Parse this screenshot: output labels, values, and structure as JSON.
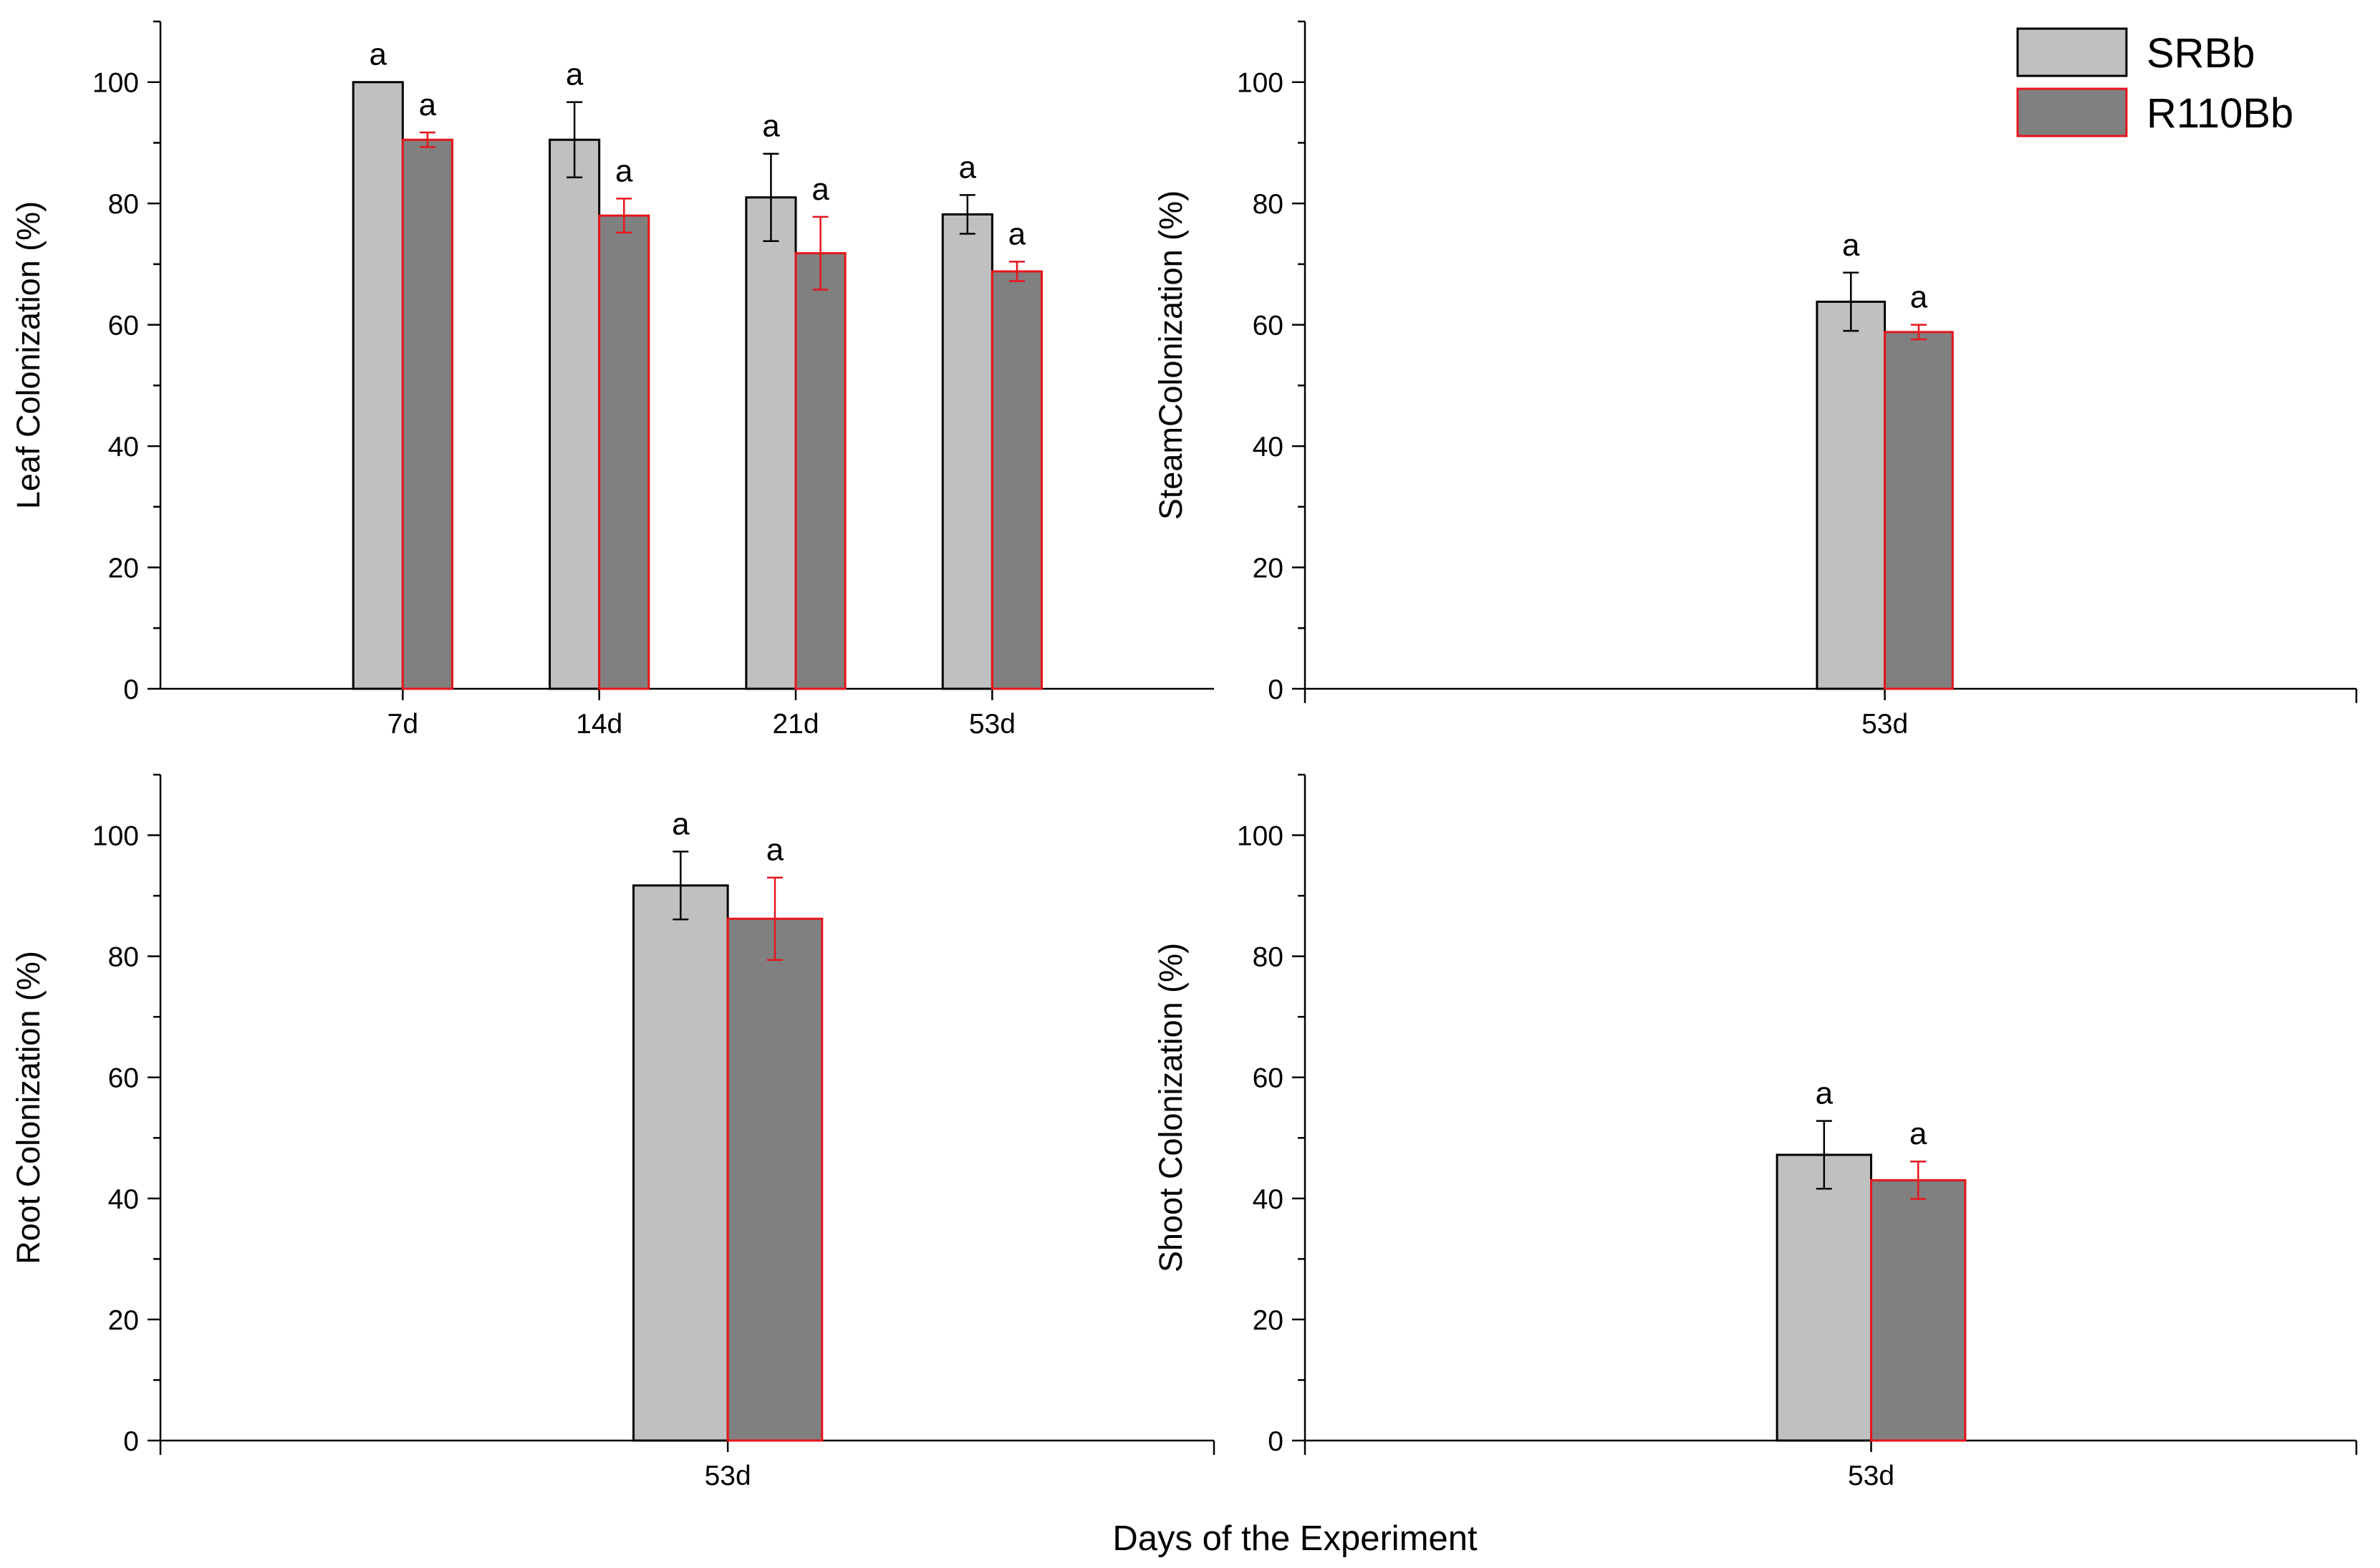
{
  "legend": [
    {
      "name": "SRBb",
      "fill": "#c0c0c0",
      "stroke": "#000000"
    },
    {
      "name": "R110Bb",
      "fill": "#808080",
      "stroke": "#e8141c"
    }
  ],
  "global_xlabel": "Days of the Experiment",
  "chart_data": [
    {
      "type": "bar",
      "panel": "top-left",
      "ylabel": "Leaf Colonization (%)",
      "xlabel": "",
      "ylim": [
        0,
        110
      ],
      "yticks": [
        0,
        20,
        40,
        60,
        80,
        100
      ],
      "categories": [
        "7d",
        "14d",
        "21d",
        "53d"
      ],
      "series": [
        {
          "name": "SRBb",
          "values": [
            100,
            90.5,
            81,
            78.2
          ],
          "errors": [
            0,
            6.2,
            7.2,
            3.2
          ],
          "labels": [
            "a",
            "a",
            "a",
            "a"
          ]
        },
        {
          "name": "R110Bb",
          "values": [
            90.5,
            78,
            71.8,
            68.8
          ],
          "errors": [
            1.2,
            2.8,
            6.0,
            1.6
          ],
          "labels": [
            "a",
            "a",
            "a",
            "a"
          ]
        }
      ]
    },
    {
      "type": "bar",
      "panel": "top-right",
      "ylabel": "SteamColonization (%)",
      "xlabel": "",
      "ylim": [
        0,
        110
      ],
      "yticks": [
        0,
        20,
        40,
        60,
        80,
        100
      ],
      "categories": [
        "53d"
      ],
      "series": [
        {
          "name": "SRBb",
          "values": [
            63.8
          ],
          "errors": [
            4.8
          ],
          "labels": [
            "a"
          ]
        },
        {
          "name": "R110Bb",
          "values": [
            58.8
          ],
          "errors": [
            1.2
          ],
          "labels": [
            "a"
          ]
        }
      ]
    },
    {
      "type": "bar",
      "panel": "bottom-left",
      "ylabel": "Root Colonization (%)",
      "xlabel": "",
      "ylim": [
        0,
        110
      ],
      "yticks": [
        0,
        20,
        40,
        60,
        80,
        100
      ],
      "categories": [
        "53d"
      ],
      "series": [
        {
          "name": "SRBb",
          "values": [
            91.7
          ],
          "errors": [
            5.6
          ],
          "labels": [
            "a"
          ]
        },
        {
          "name": "R110Bb",
          "values": [
            86.2
          ],
          "errors": [
            6.8
          ],
          "labels": [
            "a"
          ]
        }
      ]
    },
    {
      "type": "bar",
      "panel": "bottom-right",
      "ylabel": "Shoot Colonization (%)",
      "xlabel": "",
      "ylim": [
        0,
        110
      ],
      "yticks": [
        0,
        20,
        40,
        60,
        80,
        100
      ],
      "categories": [
        "53d"
      ],
      "series": [
        {
          "name": "SRBb",
          "values": [
            47.2
          ],
          "errors": [
            5.6
          ],
          "labels": [
            "a"
          ]
        },
        {
          "name": "R110Bb",
          "values": [
            43.0
          ],
          "errors": [
            3.1
          ],
          "labels": [
            "a"
          ]
        }
      ]
    }
  ]
}
